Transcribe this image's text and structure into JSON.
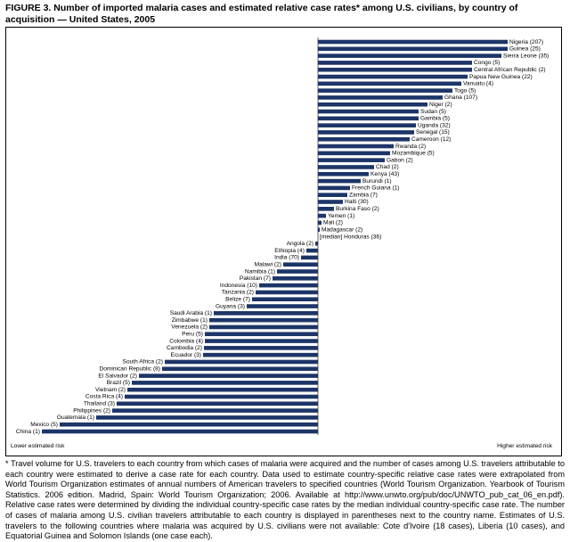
{
  "chart_data": {
    "type": "bar",
    "title": "FIGURE 3. Number of imported malaria cases and estimated relative case rates* among U.S. civilians, by country of acquisition — United States, 2005",
    "categories": [
      "Nigeria (207)",
      "Guinea (25)",
      "Sierra Leone (35)",
      "Congo (5)",
      "Central African Republic (2)",
      "Papua New Guinea (22)",
      "Vanuatu (4)",
      "Togo (5)",
      "Ghana (107)",
      "Niger (2)",
      "Sudan (5)",
      "Gambia (5)",
      "Uganda (32)",
      "Senegal (15)",
      "Cameroon (12)",
      "Rwanda (2)",
      "Mozambique (5)",
      "Gabon (2)",
      "Chad (2)",
      "Kenya (43)",
      "Burundi (1)",
      "French Guiana (1)",
      "Zambia (7)",
      "Haiti (30)",
      "Burkina Faso (2)",
      "Yemen (1)",
      "Mali (2)",
      "Madagascar (2)",
      "[median] Honduras (36)",
      "Angola (2)",
      "Ethiopia (4)",
      "India (70)",
      "Malawi (2)",
      "Namibia (1)",
      "Pakistan (7)",
      "Indonesia (10)",
      "Tanzania (2)",
      "Belize (7)",
      "Guyana (3)",
      "Saudi Arabia (1)",
      "Zimbabwe (1)",
      "Venezuela (2)",
      "Peru (5)",
      "Colombia (4)",
      "Cambodia (2)",
      "Ecuador (3)",
      "South Africa (2)",
      "Dominican Republic (8)",
      "El Salvador (2)",
      "Brazil (5)",
      "Vietnam (2)",
      "Costa Rica (4)",
      "Thailand (3)",
      "Philippines (2)",
      "Guatemala (1)",
      "Mexico (5)",
      "China (1)"
    ],
    "values": [
      213,
      213,
      206,
      173,
      173,
      168,
      161,
      151,
      140,
      123,
      113,
      113,
      110,
      108,
      103,
      85,
      81,
      75,
      63,
      57,
      48,
      36,
      33,
      28,
      18,
      9,
      4,
      2,
      0,
      -3,
      -13,
      -19,
      -39,
      -46,
      -51,
      -66,
      -70,
      -74,
      -80,
      -117,
      -122,
      -122,
      -127,
      -127,
      -128,
      -129,
      -172,
      -175,
      -201,
      -209,
      -214,
      -217,
      -226,
      -231,
      -249,
      -290,
      -310
    ],
    "color": "#1c3568",
    "xlim": [
      -310,
      215
    ],
    "low_label": "Lower estimated risk",
    "high_label": "Higher estimated risk",
    "footnote": "* Travel volume for U.S. travelers to each country from which cases of malaria were acquired and the number of cases among U.S. travelers attributable to each country were estimated to derive a case rate for each country.  Data used to estimate country-specific relative case rates were extrapolated from World Tourism Organization estimates of annual numbers of American travelers to specified countries (World Tourism Organization. Yearbook of Tourism Statistics. 2006 edition. Madrid, Spain: World Tourism Organization; 2006. Available at http://www.unwto.org/pub/doc/UNWTO_pub_cat_06_en.pdf). Relative case rates were determined by dividing the individual country-specific case rates by the median individual country-specific case rate. The number of cases of malaria among U.S. civilian travelers attributable to each country is displayed in parentheses next to the country name. Estimates of U.S. travelers to the following countries where malaria was acquired by U.S. civilians were not available: Cote d'Ivoire (18 cases), Liberia (10 cases), and Equatorial Guinea and Solomon Islands (one case each)."
  }
}
